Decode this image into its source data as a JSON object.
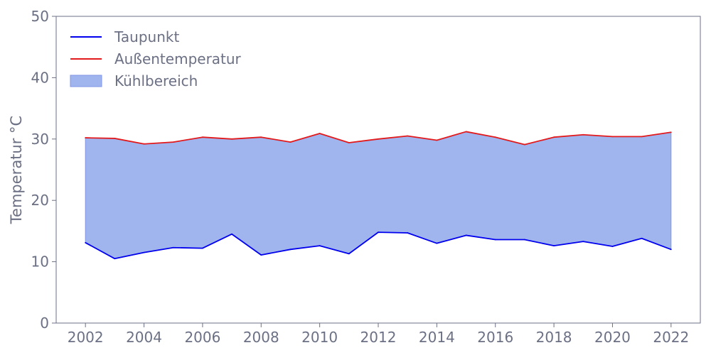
{
  "chart_data": {
    "type": "area",
    "title": "",
    "xlabel": "",
    "ylabel": "Temperatur °C",
    "xlim": [
      2001,
      2023
    ],
    "ylim": [
      0,
      50
    ],
    "x_ticks": [
      2002,
      2004,
      2006,
      2008,
      2010,
      2012,
      2014,
      2016,
      2018,
      2020,
      2022
    ],
    "y_ticks": [
      0,
      10,
      20,
      30,
      40,
      50
    ],
    "grid": false,
    "legend_position": "top-left",
    "x": [
      2002,
      2003,
      2004,
      2005,
      2006,
      2007,
      2008,
      2009,
      2010,
      2011,
      2012,
      2013,
      2014,
      2015,
      2016,
      2017,
      2018,
      2019,
      2020,
      2021,
      2022
    ],
    "series": [
      {
        "name": "Taupunkt",
        "type": "line",
        "color": "#0000ee",
        "values": [
          13.1,
          10.5,
          11.5,
          12.3,
          12.2,
          14.5,
          11.1,
          12.0,
          12.6,
          11.3,
          14.8,
          14.7,
          13.0,
          14.3,
          13.6,
          13.6,
          12.6,
          13.3,
          12.5,
          13.8,
          12.0
        ]
      },
      {
        "name": "Außentemperatur",
        "type": "line",
        "color": "#e31a1c",
        "values": [
          30.2,
          30.1,
          29.2,
          29.5,
          30.3,
          30.0,
          30.3,
          29.5,
          30.9,
          29.4,
          30.0,
          30.5,
          29.8,
          31.2,
          30.3,
          29.1,
          30.3,
          30.7,
          30.4,
          30.4,
          31.1
        ]
      }
    ],
    "fill": {
      "name": "Kühlbereich",
      "between": [
        "Taupunkt",
        "Außentemperatur"
      ],
      "color": "#a0b4ee",
      "edge_color": "#7f96e6"
    }
  }
}
